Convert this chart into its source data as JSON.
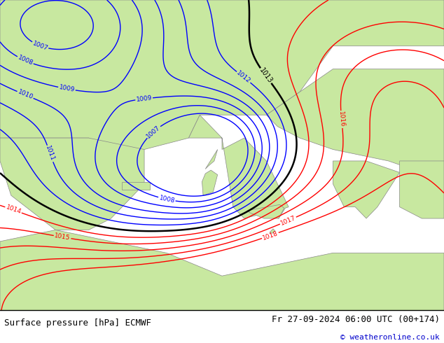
{
  "title_left": "Surface pressure [hPa] ECMWF",
  "title_right": "Fr 27-09-2024 06:00 UTC (00+174)",
  "copyright": "© weatheronline.co.uk",
  "fig_width": 6.34,
  "fig_height": 4.9,
  "dpi": 100,
  "map_bg_sea": "#c8c8c8",
  "map_bg_land": "#c8e8a0",
  "bottom_bar_color": "#ffffff",
  "bottom_bar_height": 0.095,
  "title_fontsize": 9,
  "copyright_color": "#0000cc",
  "border_color": "#000000",
  "contour_blue_color": "#0000ff",
  "contour_black_color": "#000000",
  "contour_red_color": "#ff0000",
  "land_edge_color": "#888888",
  "bottom_text_color": "#000000",
  "lon_min": -10,
  "lon_max": 30,
  "lat_min": 29,
  "lat_max": 56
}
